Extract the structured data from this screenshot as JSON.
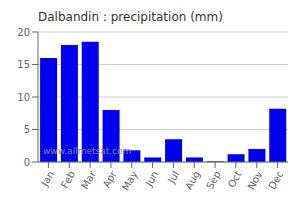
{
  "chart_data": {
    "type": "bar",
    "title": "Dalbandin : precipitation (mm)",
    "categories": [
      "Jan",
      "Feb",
      "Mar",
      "Apr",
      "May",
      "Jun",
      "Jul",
      "Aug",
      "Sep",
      "Oct",
      "Nov",
      "Dec"
    ],
    "values": [
      16,
      18,
      18.5,
      8,
      1.8,
      0.7,
      3.5,
      0.7,
      0.1,
      1.2,
      2.0,
      8.2
    ],
    "color": "#0000ee",
    "ylim": [
      0,
      20
    ],
    "yticks": [
      0,
      5,
      10,
      15,
      20
    ],
    "grid": true,
    "annotation": "www.allmetsat.com"
  }
}
